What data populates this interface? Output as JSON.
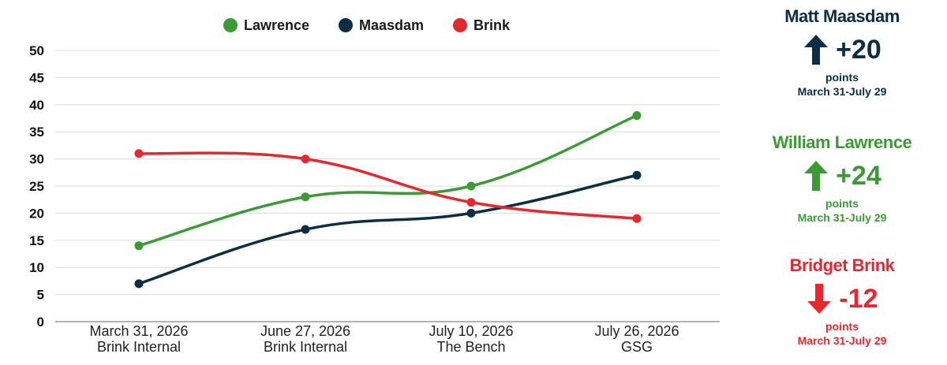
{
  "chart_data": {
    "type": "line",
    "categories": [
      [
        "March 31, 2026",
        "Brink Internal"
      ],
      [
        "June 27, 2026",
        "Brink Internal"
      ],
      [
        "July 10, 2026",
        "The Bench"
      ],
      [
        "July 26, 2026",
        "GSG"
      ]
    ],
    "series": [
      {
        "name": "Lawrence",
        "color": "#3a9a34",
        "values": [
          14,
          23,
          25,
          38
        ]
      },
      {
        "name": "Maasdam",
        "color": "#0b2d45",
        "values": [
          7,
          17,
          20,
          27
        ]
      },
      {
        "name": "Brink",
        "color": "#e8262d",
        "values": [
          31,
          30,
          22,
          19
        ]
      }
    ],
    "yticks": [
      0,
      5,
      10,
      15,
      20,
      25,
      30,
      35,
      40,
      45,
      50
    ],
    "ylim": [
      0,
      50
    ],
    "grid": true,
    "legend": "top-center"
  },
  "panels": [
    {
      "name": "Matt Maasdam",
      "delta": "+20",
      "direction": "up",
      "unit": "points",
      "period": "March 31-July 29",
      "color": "#0b2d45"
    },
    {
      "name": "William Lawrence",
      "delta": "+24",
      "direction": "up",
      "unit": "points",
      "period": "March 31-July 29",
      "color": "#3a9a34"
    },
    {
      "name": "Bridget Brink",
      "delta": "-12",
      "direction": "down",
      "unit": "points",
      "period": "March 31-July 29",
      "color": "#e8262d"
    }
  ]
}
